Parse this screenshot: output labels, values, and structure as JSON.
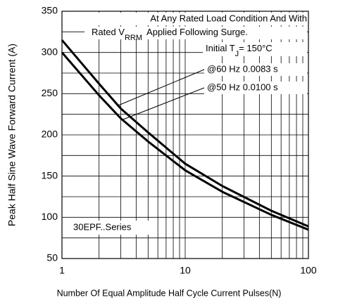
{
  "chart_data": {
    "type": "line",
    "x_label": "Number Of Equal Amplitude Half Cycle Current Pulses(N)",
    "y_label": "Peak Half Sine Wave Forward Current (A)",
    "x_log": true,
    "xlim": [
      1,
      100
    ],
    "xticks": [
      1,
      10,
      100
    ],
    "x_minor_ticks": [
      2,
      3,
      4,
      5,
      6,
      7,
      8,
      9,
      20,
      30,
      40,
      50,
      60,
      70,
      80,
      90
    ],
    "ylim": [
      50,
      350
    ],
    "yticks": [
      50,
      100,
      150,
      200,
      250,
      300,
      350
    ],
    "y_minor_ticks": [
      75,
      125,
      175,
      225,
      275,
      325
    ],
    "grid": true,
    "annotations": {
      "line1": "At Any Rated Load Condition And With",
      "line2a": "Rated V",
      "line2sub": "RRM",
      "line2b": "Applied Following Surge.",
      "tj_a": "Initial T",
      "tj_sub": "J",
      "tj_b": "= 150°C",
      "series_label": "30EPF..Series"
    },
    "x": [
      1,
      2,
      3,
      5,
      10,
      20,
      50,
      100
    ],
    "series": [
      {
        "name": "@60 Hz 0.0083 s",
        "color": "#000000",
        "values": [
          315,
          262,
          232,
          203,
          165,
          138,
          108,
          89
        ]
      },
      {
        "name": "@50 Hz 0.0100 s",
        "color": "#000000",
        "values": [
          300,
          248,
          220,
          192,
          157,
          131,
          103,
          85
        ]
      }
    ]
  }
}
